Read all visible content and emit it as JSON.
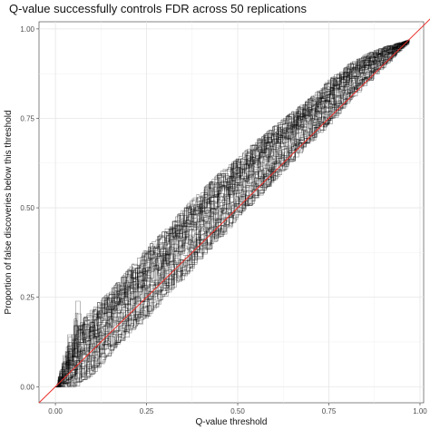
{
  "chart_data": {
    "type": "line",
    "title": "Q-value successfully controls FDR across 50 replications",
    "xlabel": "Q-value threshold",
    "ylabel": "Proportion of false discoveries below this threshold",
    "xlim": [
      -0.045,
      1.01
    ],
    "ylim": [
      -0.045,
      1.02
    ],
    "x_ticks": [
      0.0,
      0.25,
      0.5,
      0.75,
      1.0
    ],
    "x_tick_labels": [
      "0.00",
      "0.25",
      "0.50",
      "0.75",
      "1.00"
    ],
    "y_ticks": [
      0.0,
      0.25,
      0.5,
      0.75,
      1.0
    ],
    "y_tick_labels": [
      "0.00",
      "0.25",
      "0.50",
      "0.75",
      "1.00"
    ],
    "grid": true,
    "n_replications": 50,
    "series_color": "#000000",
    "reference_line": {
      "slope": 1,
      "intercept": 0,
      "color": "#e8302a"
    },
    "replications_envelope": {
      "x": [
        0.0,
        0.05,
        0.1,
        0.15,
        0.2,
        0.25,
        0.3,
        0.35,
        0.4,
        0.45,
        0.5,
        0.55,
        0.6,
        0.65,
        0.7,
        0.75,
        0.8,
        0.85,
        0.9,
        0.97
      ],
      "y_min": [
        0.0,
        0.0,
        0.04,
        0.1,
        0.15,
        0.2,
        0.26,
        0.31,
        0.37,
        0.42,
        0.48,
        0.53,
        0.58,
        0.64,
        0.69,
        0.74,
        0.8,
        0.85,
        0.9,
        0.97
      ],
      "y_max": [
        0.0,
        0.16,
        0.22,
        0.27,
        0.33,
        0.39,
        0.44,
        0.5,
        0.55,
        0.6,
        0.64,
        0.69,
        0.73,
        0.77,
        0.81,
        0.86,
        0.9,
        0.93,
        0.95,
        0.97
      ]
    }
  }
}
